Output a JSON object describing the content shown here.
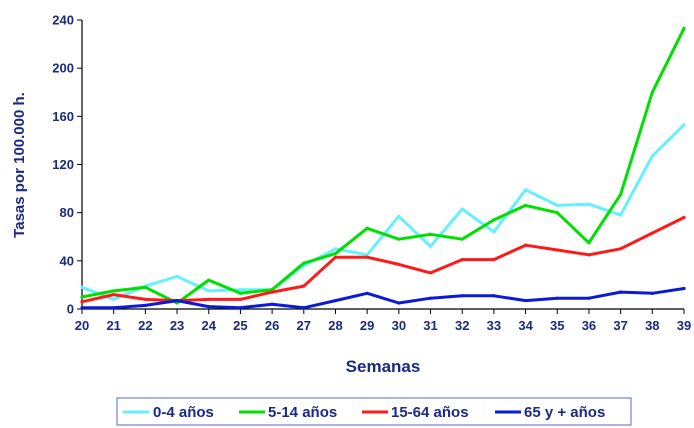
{
  "chart_data": {
    "type": "line",
    "title": "",
    "xlabel": "Semanas",
    "ylabel": "Tasas por 100.000 h.",
    "categories": [
      "20",
      "21",
      "22",
      "23",
      "24",
      "25",
      "26",
      "27",
      "28",
      "29",
      "30",
      "31",
      "32",
      "33",
      "34",
      "35",
      "36",
      "37",
      "38",
      "39"
    ],
    "ylim": [
      0,
      240
    ],
    "yticks": [
      "0",
      "40",
      "80",
      "120",
      "160",
      "200",
      "240"
    ],
    "grid": false,
    "legend_position": "bottom",
    "series": [
      {
        "name": "0-4 años",
        "color": "#66f0ff",
        "values": [
          18,
          8,
          19,
          27,
          15,
          16,
          16,
          36,
          50,
          45,
          77,
          52,
          83,
          64,
          99,
          86,
          87,
          78,
          127,
          153
        ]
      },
      {
        "name": "5-14 años",
        "color": "#00e000",
        "values": [
          10,
          15,
          18,
          5,
          24,
          13,
          16,
          38,
          46,
          67,
          58,
          62,
          58,
          74,
          86,
          80,
          55,
          95,
          180,
          233
        ]
      },
      {
        "name": "15-64 años",
        "color": "#ff1a1a",
        "values": [
          6,
          12,
          8,
          7,
          8,
          8,
          14,
          19,
          43,
          43,
          37,
          30,
          41,
          41,
          53,
          49,
          45,
          50,
          63,
          76
        ]
      },
      {
        "name": "65 y + años",
        "color": "#0a1ad8",
        "values": [
          1,
          1,
          3,
          7,
          2,
          1,
          4,
          1,
          7,
          13,
          5,
          9,
          11,
          11,
          7,
          9,
          9,
          14,
          13,
          17
        ]
      }
    ]
  }
}
